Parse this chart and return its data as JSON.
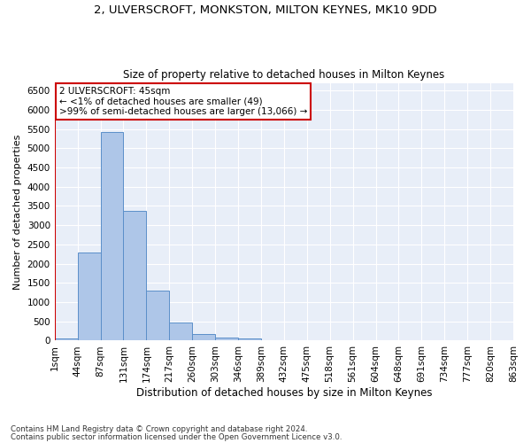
{
  "title_line1": "2, ULVERSCROFT, MONKSTON, MILTON KEYNES, MK10 9DD",
  "title_line2": "Size of property relative to detached houses in Milton Keynes",
  "xlabel": "Distribution of detached houses by size in Milton Keynes",
  "ylabel": "Number of detached properties",
  "footnote_line1": "Contains HM Land Registry data © Crown copyright and database right 2024.",
  "footnote_line2": "Contains public sector information licensed under the Open Government Licence v3.0.",
  "annotation_line1": "2 ULVERSCROFT: 45sqm",
  "annotation_line2": "← <1% of detached houses are smaller (49)",
  "annotation_line3": ">99% of semi-detached houses are larger (13,066) →",
  "bar_values": [
    49,
    2280,
    5430,
    3380,
    1310,
    480,
    165,
    75,
    60,
    0,
    0,
    0,
    0,
    0,
    0,
    0,
    0,
    0,
    0,
    0
  ],
  "bar_labels": [
    "1sqm",
    "44sqm",
    "87sqm",
    "131sqm",
    "174sqm",
    "217sqm",
    "260sqm",
    "303sqm",
    "346sqm",
    "389sqm",
    "432sqm",
    "475sqm",
    "518sqm",
    "561sqm",
    "604sqm",
    "648sqm",
    "691sqm",
    "734sqm",
    "777sqm",
    "820sqm",
    "863sqm"
  ],
  "bar_color": "#aec6e8",
  "bar_edge_color": "#5b8fc9",
  "highlight_color": "#cc0000",
  "ylim": [
    0,
    6700
  ],
  "yticks": [
    0,
    500,
    1000,
    1500,
    2000,
    2500,
    3000,
    3500,
    4000,
    4500,
    5000,
    5500,
    6000,
    6500
  ],
  "bg_color": "#ffffff",
  "plot_bg_color": "#e8eef8",
  "grid_color": "#ffffff",
  "annotation_box_color": "#cc0000",
  "figsize": [
    6.0,
    5.0
  ],
  "dpi": 100
}
